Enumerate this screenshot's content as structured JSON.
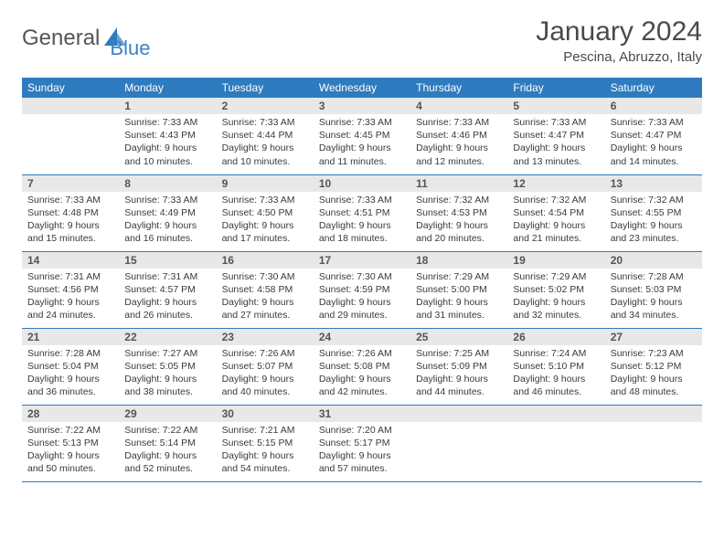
{
  "logo": {
    "text_a": "General",
    "text_b": "Blue",
    "tri_color": "#2f7bbf"
  },
  "colors": {
    "header_bg": "#2f7bbf",
    "header_text": "#ffffff",
    "daynum_bg": "#e8e8e8",
    "rule": "#2f7bbf",
    "body_text": "#3a3a3a"
  },
  "title": "January 2024",
  "location": "Pescina, Abruzzo, Italy",
  "weekdays": [
    "Sunday",
    "Monday",
    "Tuesday",
    "Wednesday",
    "Thursday",
    "Friday",
    "Saturday"
  ],
  "layout": {
    "start_offset": 1,
    "days_in_month": 31
  },
  "days": {
    "1": {
      "sunrise": "7:33 AM",
      "sunset": "4:43 PM",
      "daylight": "9 hours and 10 minutes."
    },
    "2": {
      "sunrise": "7:33 AM",
      "sunset": "4:44 PM",
      "daylight": "9 hours and 10 minutes."
    },
    "3": {
      "sunrise": "7:33 AM",
      "sunset": "4:45 PM",
      "daylight": "9 hours and 11 minutes."
    },
    "4": {
      "sunrise": "7:33 AM",
      "sunset": "4:46 PM",
      "daylight": "9 hours and 12 minutes."
    },
    "5": {
      "sunrise": "7:33 AM",
      "sunset": "4:47 PM",
      "daylight": "9 hours and 13 minutes."
    },
    "6": {
      "sunrise": "7:33 AM",
      "sunset": "4:47 PM",
      "daylight": "9 hours and 14 minutes."
    },
    "7": {
      "sunrise": "7:33 AM",
      "sunset": "4:48 PM",
      "daylight": "9 hours and 15 minutes."
    },
    "8": {
      "sunrise": "7:33 AM",
      "sunset": "4:49 PM",
      "daylight": "9 hours and 16 minutes."
    },
    "9": {
      "sunrise": "7:33 AM",
      "sunset": "4:50 PM",
      "daylight": "9 hours and 17 minutes."
    },
    "10": {
      "sunrise": "7:33 AM",
      "sunset": "4:51 PM",
      "daylight": "9 hours and 18 minutes."
    },
    "11": {
      "sunrise": "7:32 AM",
      "sunset": "4:53 PM",
      "daylight": "9 hours and 20 minutes."
    },
    "12": {
      "sunrise": "7:32 AM",
      "sunset": "4:54 PM",
      "daylight": "9 hours and 21 minutes."
    },
    "13": {
      "sunrise": "7:32 AM",
      "sunset": "4:55 PM",
      "daylight": "9 hours and 23 minutes."
    },
    "14": {
      "sunrise": "7:31 AM",
      "sunset": "4:56 PM",
      "daylight": "9 hours and 24 minutes."
    },
    "15": {
      "sunrise": "7:31 AM",
      "sunset": "4:57 PM",
      "daylight": "9 hours and 26 minutes."
    },
    "16": {
      "sunrise": "7:30 AM",
      "sunset": "4:58 PM",
      "daylight": "9 hours and 27 minutes."
    },
    "17": {
      "sunrise": "7:30 AM",
      "sunset": "4:59 PM",
      "daylight": "9 hours and 29 minutes."
    },
    "18": {
      "sunrise": "7:29 AM",
      "sunset": "5:00 PM",
      "daylight": "9 hours and 31 minutes."
    },
    "19": {
      "sunrise": "7:29 AM",
      "sunset": "5:02 PM",
      "daylight": "9 hours and 32 minutes."
    },
    "20": {
      "sunrise": "7:28 AM",
      "sunset": "5:03 PM",
      "daylight": "9 hours and 34 minutes."
    },
    "21": {
      "sunrise": "7:28 AM",
      "sunset": "5:04 PM",
      "daylight": "9 hours and 36 minutes."
    },
    "22": {
      "sunrise": "7:27 AM",
      "sunset": "5:05 PM",
      "daylight": "9 hours and 38 minutes."
    },
    "23": {
      "sunrise": "7:26 AM",
      "sunset": "5:07 PM",
      "daylight": "9 hours and 40 minutes."
    },
    "24": {
      "sunrise": "7:26 AM",
      "sunset": "5:08 PM",
      "daylight": "9 hours and 42 minutes."
    },
    "25": {
      "sunrise": "7:25 AM",
      "sunset": "5:09 PM",
      "daylight": "9 hours and 44 minutes."
    },
    "26": {
      "sunrise": "7:24 AM",
      "sunset": "5:10 PM",
      "daylight": "9 hours and 46 minutes."
    },
    "27": {
      "sunrise": "7:23 AM",
      "sunset": "5:12 PM",
      "daylight": "9 hours and 48 minutes."
    },
    "28": {
      "sunrise": "7:22 AM",
      "sunset": "5:13 PM",
      "daylight": "9 hours and 50 minutes."
    },
    "29": {
      "sunrise": "7:22 AM",
      "sunset": "5:14 PM",
      "daylight": "9 hours and 52 minutes."
    },
    "30": {
      "sunrise": "7:21 AM",
      "sunset": "5:15 PM",
      "daylight": "9 hours and 54 minutes."
    },
    "31": {
      "sunrise": "7:20 AM",
      "sunset": "5:17 PM",
      "daylight": "9 hours and 57 minutes."
    }
  },
  "labels": {
    "sunrise": "Sunrise:",
    "sunset": "Sunset:",
    "daylight": "Daylight:"
  }
}
